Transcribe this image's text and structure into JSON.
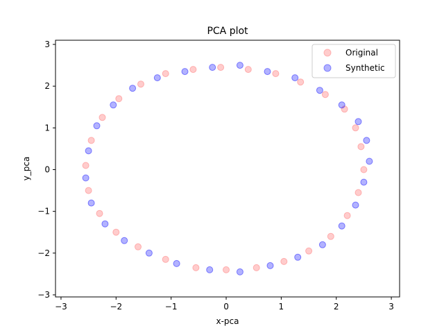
{
  "chart_data": {
    "type": "scatter",
    "title": "PCA plot",
    "xlabel": "x-pca",
    "ylabel": "y_pca",
    "xlim": [
      -3.1,
      3.15
    ],
    "ylim": [
      -3.05,
      3.1
    ],
    "xticks": [
      -3,
      -2,
      -1,
      0,
      1,
      2,
      3
    ],
    "yticks": [
      -3,
      -2,
      -1,
      0,
      1,
      2,
      3
    ],
    "grid": false,
    "legend_position": "top-right",
    "shape": "noisy elliptical ring",
    "series": [
      {
        "name": "Original",
        "color": "#ff7f7f",
        "alpha": 0.4,
        "points": [
          [
            2.5,
            0.0
          ],
          [
            2.45,
            0.55
          ],
          [
            2.35,
            1.0
          ],
          [
            2.15,
            1.45
          ],
          [
            1.8,
            1.8
          ],
          [
            1.35,
            2.1
          ],
          [
            0.9,
            2.3
          ],
          [
            0.4,
            2.4
          ],
          [
            -0.1,
            2.45
          ],
          [
            -0.6,
            2.4
          ],
          [
            -1.1,
            2.3
          ],
          [
            -1.55,
            2.05
          ],
          [
            -1.95,
            1.7
          ],
          [
            -2.25,
            1.25
          ],
          [
            -2.45,
            0.7
          ],
          [
            -2.55,
            0.1
          ],
          [
            -2.5,
            -0.5
          ],
          [
            -2.3,
            -1.05
          ],
          [
            -2.0,
            -1.5
          ],
          [
            -1.6,
            -1.85
          ],
          [
            -1.1,
            -2.15
          ],
          [
            -0.55,
            -2.35
          ],
          [
            0.0,
            -2.4
          ],
          [
            0.55,
            -2.35
          ],
          [
            1.05,
            -2.2
          ],
          [
            1.5,
            -1.95
          ],
          [
            1.9,
            -1.6
          ],
          [
            2.2,
            -1.1
          ],
          [
            2.4,
            -0.55
          ]
        ]
      },
      {
        "name": "Synthetic",
        "color": "#0000ff",
        "alpha": 0.3,
        "points": [
          [
            2.6,
            0.2
          ],
          [
            2.55,
            0.7
          ],
          [
            2.4,
            1.15
          ],
          [
            2.1,
            1.55
          ],
          [
            1.7,
            1.9
          ],
          [
            1.25,
            2.2
          ],
          [
            0.75,
            2.35
          ],
          [
            0.25,
            2.5
          ],
          [
            -0.25,
            2.45
          ],
          [
            -0.75,
            2.35
          ],
          [
            -1.25,
            2.2
          ],
          [
            -1.7,
            1.95
          ],
          [
            -2.05,
            1.55
          ],
          [
            -2.35,
            1.05
          ],
          [
            -2.5,
            0.45
          ],
          [
            -2.55,
            -0.2
          ],
          [
            -2.45,
            -0.8
          ],
          [
            -2.2,
            -1.3
          ],
          [
            -1.85,
            -1.7
          ],
          [
            -1.4,
            -2.0
          ],
          [
            -0.9,
            -2.25
          ],
          [
            -0.3,
            -2.4
          ],
          [
            0.25,
            -2.45
          ],
          [
            0.8,
            -2.3
          ],
          [
            1.3,
            -2.1
          ],
          [
            1.75,
            -1.8
          ],
          [
            2.1,
            -1.35
          ],
          [
            2.35,
            -0.85
          ],
          [
            2.5,
            -0.3
          ]
        ]
      }
    ]
  }
}
